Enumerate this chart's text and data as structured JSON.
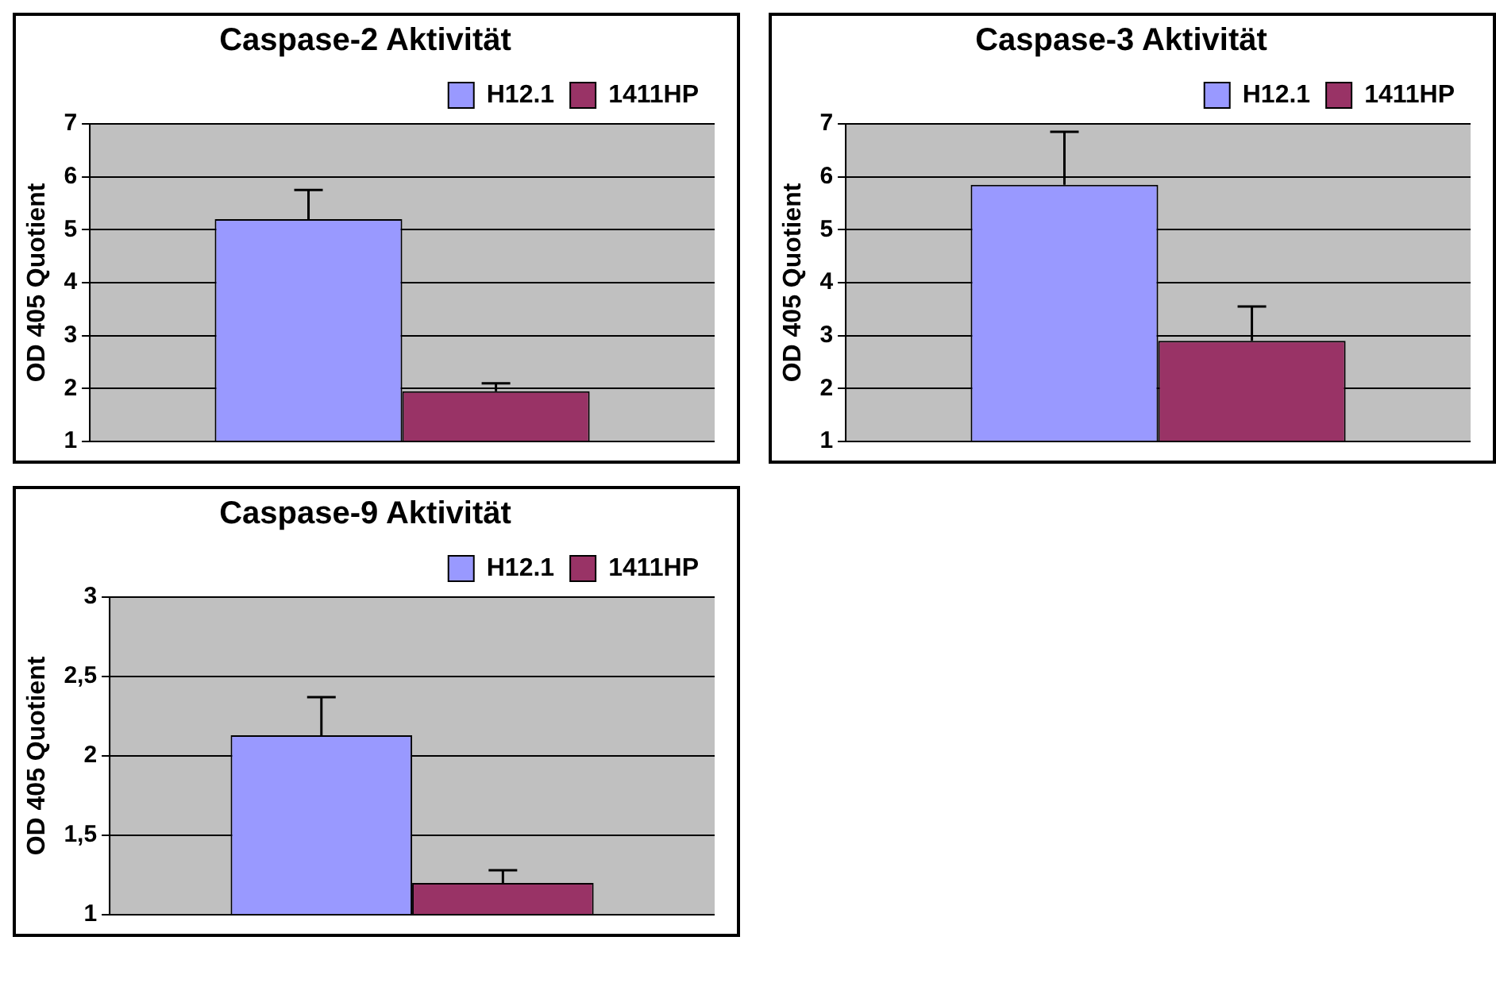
{
  "chart_data": [
    {
      "type": "bar",
      "title": "Caspase-2 Aktivität",
      "ylabel": "OD 405 Quotient",
      "categories": [
        null
      ],
      "ylim": [
        1,
        7
      ],
      "yticks": [
        1,
        2,
        3,
        4,
        5,
        6,
        7
      ],
      "grid": "y",
      "legend": "top right",
      "series": [
        {
          "name": "H12.1",
          "color": "#9999ff",
          "values": [
            5.2
          ],
          "errors": [
            [
              5.2,
              5.75
            ]
          ]
        },
        {
          "name": "1411HP",
          "color": "#993366",
          "values": [
            1.95
          ],
          "errors": [
            [
              1.95,
              2.1
            ]
          ]
        }
      ]
    },
    {
      "type": "bar",
      "title": "Caspase-3 Aktivität",
      "ylabel": "OD 405 Quotient",
      "categories": [
        null
      ],
      "ylim": [
        1,
        7
      ],
      "yticks": [
        1,
        2,
        3,
        4,
        5,
        6,
        7
      ],
      "grid": "y",
      "legend": "top right",
      "series": [
        {
          "name": "H12.1",
          "color": "#9999ff",
          "values": [
            5.85
          ],
          "errors": [
            [
              5.85,
              6.85
            ]
          ]
        },
        {
          "name": "1411HP",
          "color": "#993366",
          "values": [
            2.9
          ],
          "errors": [
            [
              2.9,
              3.55
            ]
          ]
        }
      ]
    },
    {
      "type": "bar",
      "title": "Caspase-9 Aktivität",
      "ylabel": "OD 405 Quotient",
      "categories": [
        null
      ],
      "ylim": [
        1,
        3
      ],
      "yticks": [
        1,
        {
          "value": 1.5,
          "label": "1,5"
        },
        2,
        {
          "value": 2.5,
          "label": "2,5"
        },
        3
      ],
      "grid": "y",
      "legend": "top right",
      "series": [
        {
          "name": "H12.1",
          "color": "#9999ff",
          "values": [
            2.13
          ],
          "errors": [
            [
              2.13,
              2.37
            ]
          ]
        },
        {
          "name": "1411HP",
          "color": "#993366",
          "values": [
            1.2
          ],
          "errors": [
            [
              1.2,
              1.28
            ]
          ]
        }
      ]
    }
  ]
}
